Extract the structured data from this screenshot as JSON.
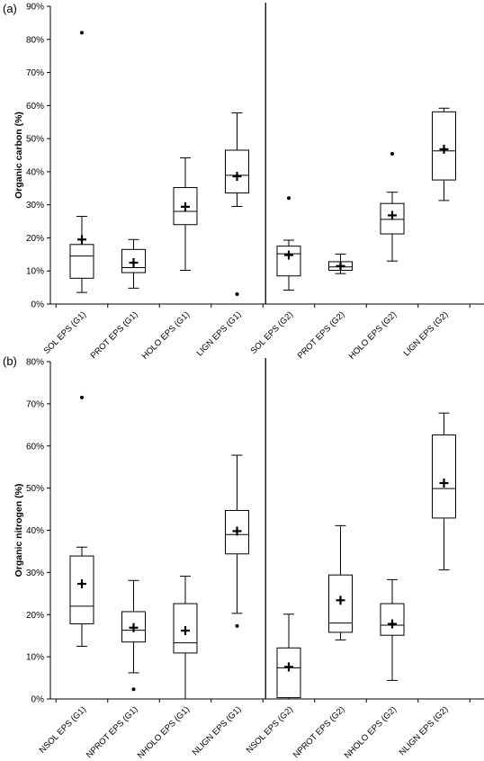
{
  "chart_data": [
    {
      "type": "boxplot",
      "panel_label": "(a)",
      "ylabel": "Organic carbon (%)",
      "ylim": [
        0,
        90
      ],
      "yticks": [
        0,
        10,
        20,
        30,
        40,
        50,
        60,
        70,
        80,
        90
      ],
      "ytick_labels": [
        "0%",
        "10%",
        "20%",
        "30%",
        "40%",
        "50%",
        "60%",
        "70%",
        "80%",
        "90%"
      ],
      "divider_after_index": 3,
      "categories": [
        "SOL EPS (G1)",
        "PROT EPS (G1)",
        "HOLO EPS (G1)",
        "LIGN EPS (G1)",
        "SOL EPS (G2)",
        "PROT EPS (G2)",
        "HOLO EPS (G2)",
        "LIGN EPS (G2)"
      ],
      "boxes": [
        {
          "min": 3.5,
          "q1": 7.8,
          "median": 14.5,
          "q3": 18,
          "max": 26.5,
          "mean": 19.5,
          "outliers": [
            82
          ]
        },
        {
          "min": 4.8,
          "q1": 9.5,
          "median": 11,
          "q3": 16.5,
          "max": 19.5,
          "mean": 12.5,
          "outliers": []
        },
        {
          "min": 10.2,
          "q1": 24,
          "median": 28,
          "q3": 35.2,
          "max": 44.2,
          "mean": 29.4,
          "outliers": []
        },
        {
          "min": 29.5,
          "q1": 33.6,
          "median": 38.9,
          "q3": 46.5,
          "max": 57.8,
          "mean": 38.6,
          "outliers": [
            3
          ]
        },
        {
          "min": 4.2,
          "q1": 8.5,
          "median": 15.2,
          "q3": 17.5,
          "max": 19.3,
          "mean": 14.8,
          "outliers": [
            32
          ]
        },
        {
          "min": 9.2,
          "q1": 10.2,
          "median": 11.2,
          "q3": 12.8,
          "max": 15.1,
          "mean": 11.5,
          "outliers": []
        },
        {
          "min": 13,
          "q1": 21.2,
          "median": 25.6,
          "q3": 30.4,
          "max": 33.8,
          "mean": 26.8,
          "outliers": [
            45.4
          ]
        },
        {
          "min": 31.3,
          "q1": 37.5,
          "median": 46.3,
          "q3": 58.1,
          "max": 59.2,
          "mean": 46.8,
          "outliers": []
        }
      ]
    },
    {
      "type": "boxplot",
      "panel_label": "(b)",
      "ylabel": "Organic nitrogen (%)",
      "ylim": [
        0,
        80
      ],
      "yticks": [
        0,
        10,
        20,
        30,
        40,
        50,
        60,
        70,
        80
      ],
      "ytick_labels": [
        "0%",
        "10%",
        "20%",
        "30%",
        "40%",
        "50%",
        "60%",
        "70%",
        "80%"
      ],
      "divider_after_index": 3,
      "categories": [
        "NSOL EPS (G1)",
        "NPROT EPS (G1)",
        "NHOLO EPS (G1)",
        "NLIGN EPS (G1)",
        "NSOL EPS (G2)",
        "NPROT EPS (G2)",
        "NHOLO EPS (G2)",
        "NLIGN EPS (G2)"
      ],
      "boxes": [
        {
          "min": 12.5,
          "q1": 17.8,
          "median": 22,
          "q3": 33.9,
          "max": 36,
          "mean": 27.3,
          "outliers": [
            71.5
          ]
        },
        {
          "min": 6.2,
          "q1": 13.5,
          "median": 16.3,
          "q3": 20.7,
          "max": 28.1,
          "mean": 16.9,
          "outliers": [
            2.3
          ]
        },
        {
          "min": 0,
          "q1": 10.9,
          "median": 13.3,
          "q3": 22.6,
          "max": 29.1,
          "mean": 16.2,
          "outliers": []
        },
        {
          "min": 20.3,
          "q1": 34.4,
          "median": 39,
          "q3": 44.7,
          "max": 57.8,
          "mean": 39.8,
          "outliers": [
            17.3
          ]
        },
        {
          "min": 0,
          "q1": 0.3,
          "median": 7.4,
          "q3": 12.1,
          "max": 20.1,
          "mean": 7.6,
          "outliers": []
        },
        {
          "min": 14,
          "q1": 15.8,
          "median": 18,
          "q3": 29.4,
          "max": 41.1,
          "mean": 23.4,
          "outliers": []
        },
        {
          "min": 4.4,
          "q1": 15.1,
          "median": 17.5,
          "q3": 22.6,
          "max": 28.3,
          "mean": 17.8,
          "outliers": []
        },
        {
          "min": 30.6,
          "q1": 42.9,
          "median": 49.9,
          "q3": 62.6,
          "max": 67.8,
          "mean": 51.2,
          "outliers": []
        }
      ]
    }
  ]
}
